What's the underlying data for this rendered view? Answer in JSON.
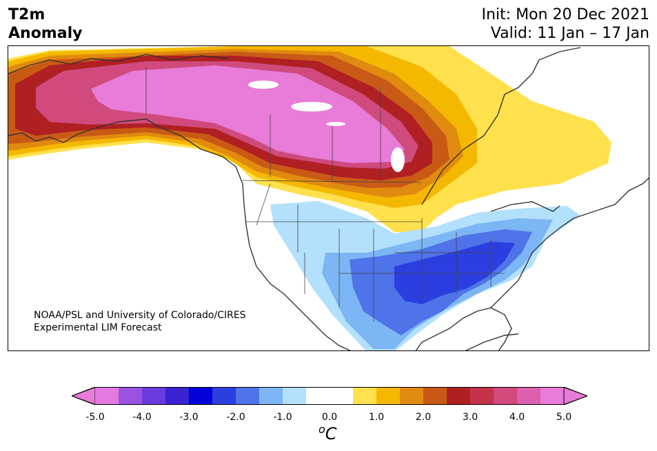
{
  "title": {
    "left_line1": "T2m",
    "left_line2": "Anomaly",
    "right_line1": "Init: Mon 20 Dec 2021",
    "right_line2": "Valid: 11 Jan – 17 Jan"
  },
  "credit": {
    "line1": "NOAA/PSL and University of Colorado/CIRES",
    "line2": "Experimental LIM Forecast"
  },
  "colorbar": {
    "units_symbol": "o",
    "units_letter": "C",
    "ticks": [
      "-5.0",
      "-4.0",
      "-3.0",
      "-2.0",
      "-1.0",
      "0.0",
      "1.0",
      "2.0",
      "3.0",
      "4.0",
      "5.0"
    ],
    "colors": [
      "#e27ae0",
      "#9a52e0",
      "#6a3be0",
      "#3a22d2",
      "#0000d8",
      "#2b3fe0",
      "#4f73e8",
      "#7db6f4",
      "#b3e0fd",
      "#ffffff",
      "#ffffff",
      "#ffe14d",
      "#f5b800",
      "#e08a10",
      "#c95a15",
      "#b01f22",
      "#c4334a",
      "#d04a7e",
      "#dc5fb0",
      "#e87cd8"
    ],
    "under_color": "#e87cd8",
    "over_color": "#e87cd8"
  },
  "map": {
    "region": "North America",
    "colors": {
      "pink": "#e87cd8",
      "magenta": "#d04a7e",
      "red": "#b01f22",
      "dark_orange": "#c95a15",
      "orange": "#e08a10",
      "gold": "#f5b800",
      "yellow": "#ffe14d",
      "pale_blue": "#b3e0fd",
      "light_blue": "#7db6f4",
      "medium_blue": "#4f73e8",
      "blue": "#2b3fe0",
      "coast": "#333333"
    }
  }
}
